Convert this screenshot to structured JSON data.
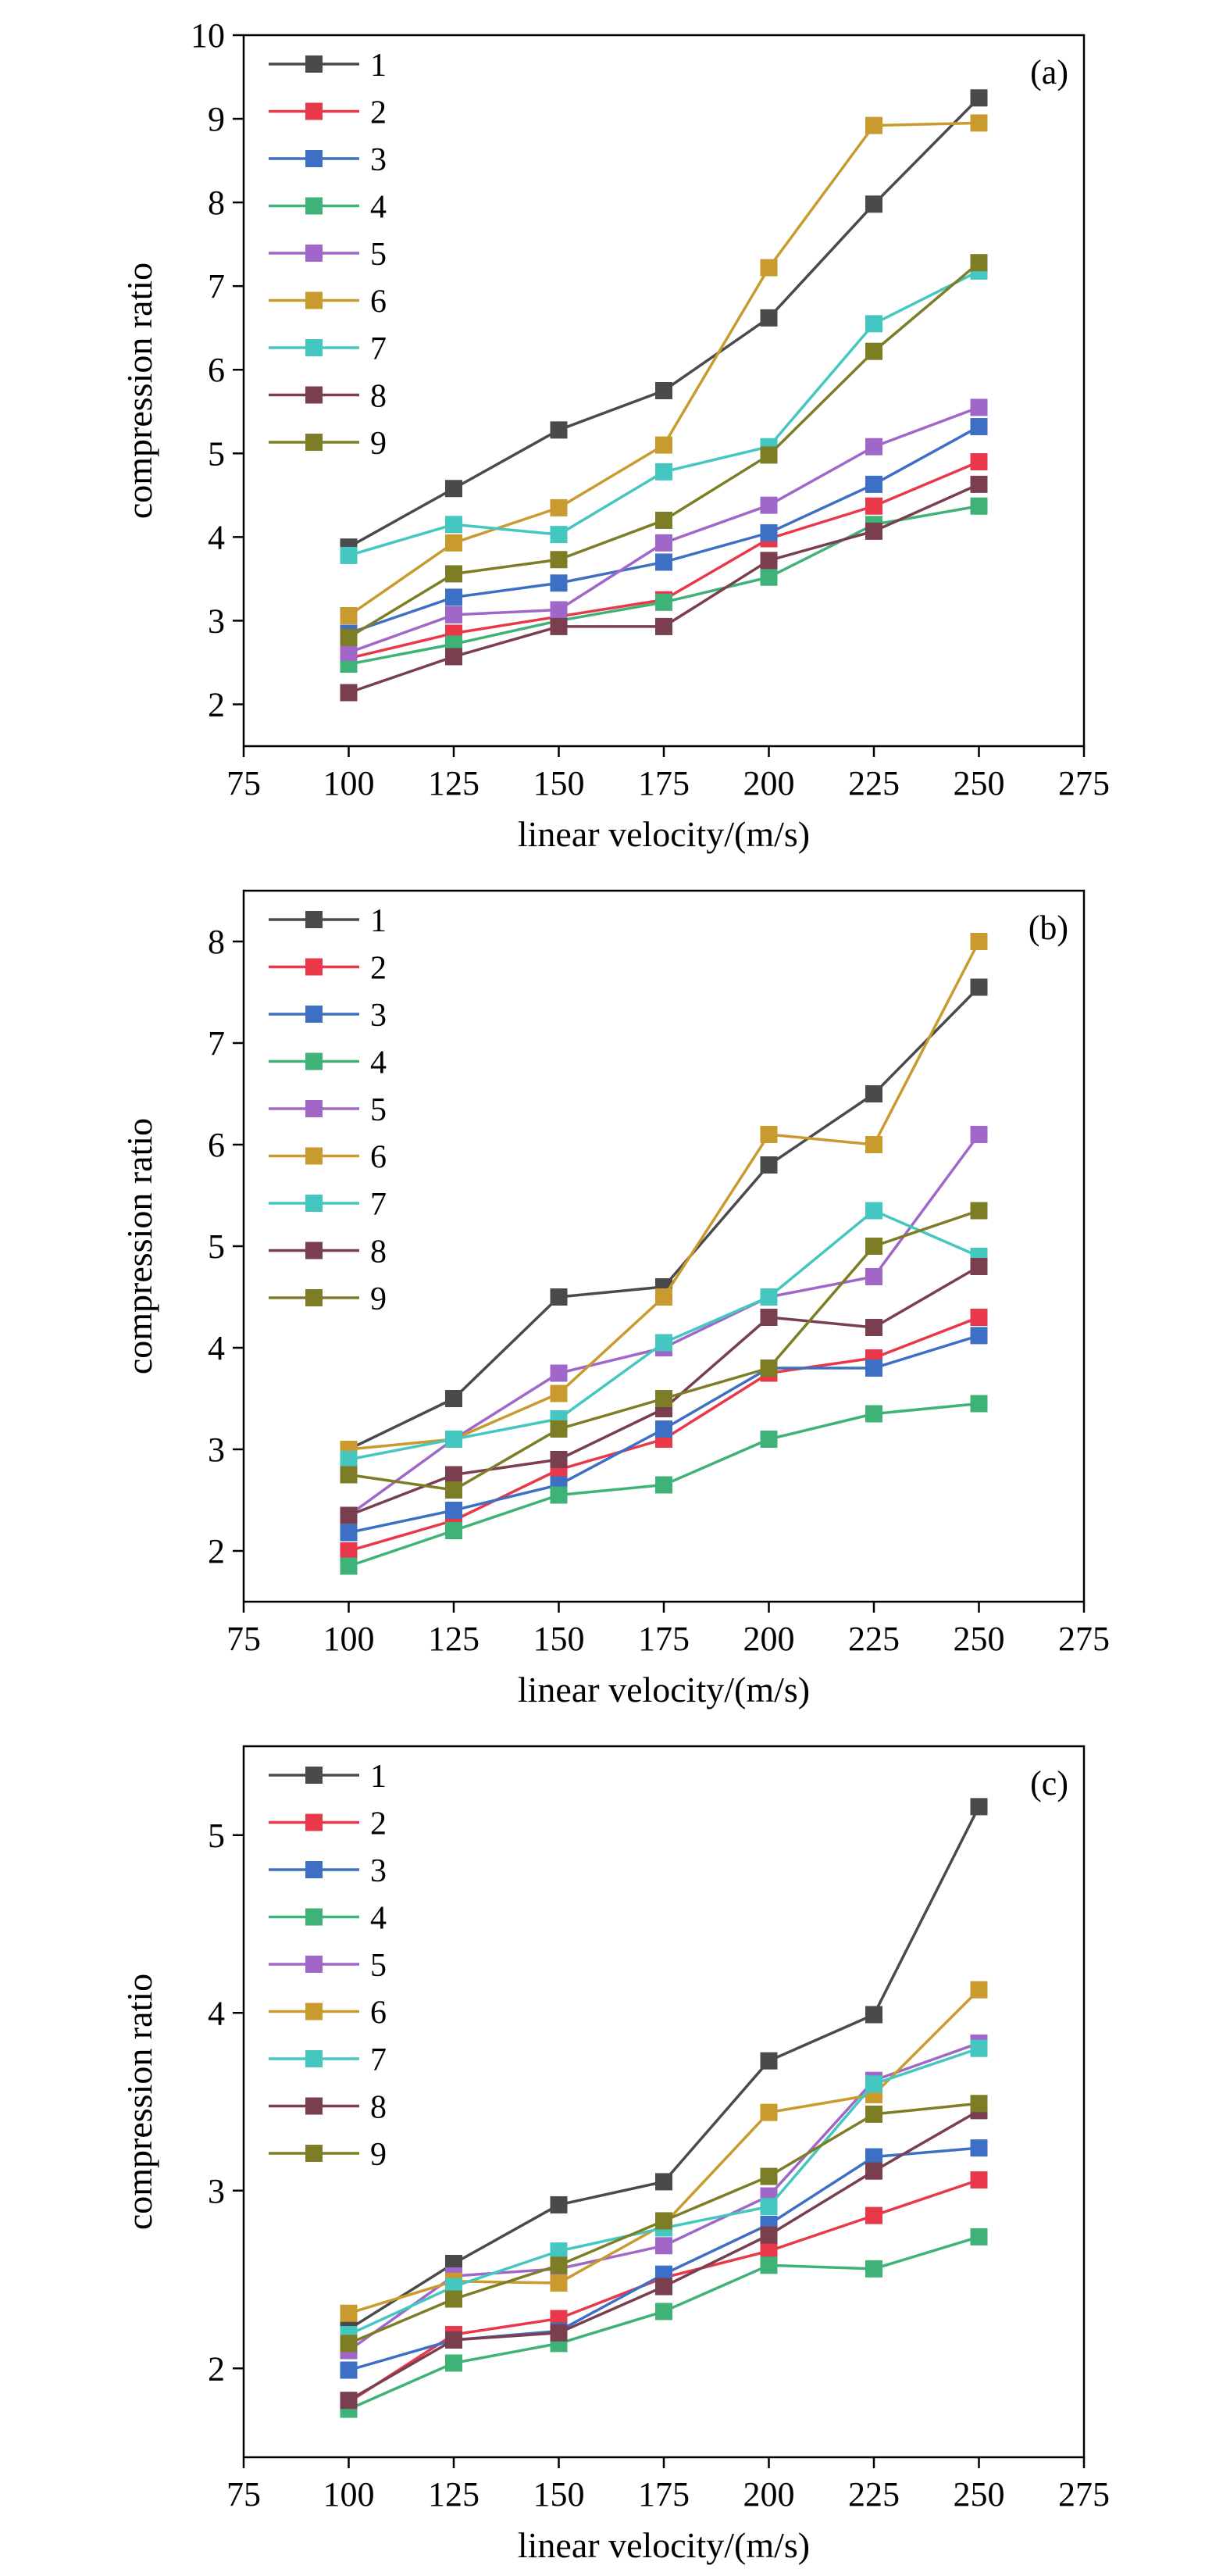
{
  "chart_data": [
    {
      "type": "line",
      "panel_label": "(a)",
      "xlabel": "linear velocity/(m/s)",
      "ylabel": "compression ratio",
      "xlim": [
        75,
        275
      ],
      "ylim": [
        1.5,
        10
      ],
      "xticks": [
        75,
        100,
        125,
        150,
        175,
        200,
        225,
        250,
        275
      ],
      "yticks": [
        2,
        3,
        4,
        5,
        6,
        7,
        8,
        9,
        10
      ],
      "legend": "top-left",
      "x": [
        100,
        125,
        150,
        175,
        200,
        225,
        250
      ],
      "series": [
        {
          "name": "1",
          "color": "#4a4a4a",
          "values": [
            3.88,
            4.58,
            5.28,
            5.75,
            6.62,
            7.98,
            9.25
          ]
        },
        {
          "name": "2",
          "color": "#e8384a",
          "values": [
            2.55,
            2.85,
            3.05,
            3.25,
            3.98,
            4.37,
            4.9
          ]
        },
        {
          "name": "3",
          "color": "#3d6fc4",
          "values": [
            2.85,
            3.28,
            3.45,
            3.7,
            4.05,
            4.63,
            5.32
          ]
        },
        {
          "name": "4",
          "color": "#3fb277",
          "values": [
            2.48,
            2.72,
            3.0,
            3.22,
            3.52,
            4.15,
            4.37
          ]
        },
        {
          "name": "5",
          "color": "#a067c9",
          "values": [
            2.62,
            3.07,
            3.13,
            3.93,
            4.38,
            5.08,
            5.55
          ]
        },
        {
          "name": "6",
          "color": "#c99a2e",
          "values": [
            3.06,
            3.93,
            4.35,
            5.1,
            7.22,
            8.92,
            8.95
          ]
        },
        {
          "name": "7",
          "color": "#45c7c1",
          "values": [
            3.78,
            4.15,
            4.03,
            4.78,
            5.08,
            6.55,
            7.18
          ]
        },
        {
          "name": "8",
          "color": "#7a3f4e",
          "values": [
            2.14,
            2.57,
            2.93,
            2.93,
            3.72,
            4.07,
            4.63
          ]
        },
        {
          "name": "9",
          "color": "#7d7d26",
          "values": [
            2.8,
            3.56,
            3.73,
            4.2,
            4.98,
            6.22,
            7.28
          ]
        }
      ]
    },
    {
      "type": "line",
      "panel_label": "(b)",
      "xlabel": "linear velocity/(m/s)",
      "ylabel": "compression ratio",
      "xlim": [
        75,
        275
      ],
      "ylim": [
        1.5,
        8.5
      ],
      "xticks": [
        75,
        100,
        125,
        150,
        175,
        200,
        225,
        250,
        275
      ],
      "yticks": [
        2,
        3,
        4,
        5,
        6,
        7,
        8
      ],
      "legend": "top-left",
      "x": [
        100,
        125,
        150,
        175,
        200,
        225,
        250
      ],
      "series": [
        {
          "name": "1",
          "color": "#4a4a4a",
          "values": [
            3.0,
            3.5,
            4.5,
            4.6,
            5.8,
            6.5,
            7.55
          ]
        },
        {
          "name": "2",
          "color": "#e8384a",
          "values": [
            2.0,
            2.3,
            2.8,
            3.1,
            3.75,
            3.9,
            4.3
          ]
        },
        {
          "name": "3",
          "color": "#3d6fc4",
          "values": [
            2.18,
            2.4,
            2.65,
            3.2,
            3.8,
            3.8,
            4.12
          ]
        },
        {
          "name": "4",
          "color": "#3fb277",
          "values": [
            1.85,
            2.2,
            2.55,
            2.65,
            3.1,
            3.35,
            3.45
          ]
        },
        {
          "name": "5",
          "color": "#a067c9",
          "values": [
            2.35,
            3.1,
            3.75,
            4.0,
            4.5,
            4.7,
            6.1
          ]
        },
        {
          "name": "6",
          "color": "#c99a2e",
          "values": [
            3.0,
            3.1,
            3.55,
            4.5,
            6.1,
            6.0,
            8.0
          ]
        },
        {
          "name": "7",
          "color": "#45c7c1",
          "values": [
            2.9,
            3.1,
            3.3,
            4.05,
            4.5,
            5.35,
            4.9
          ]
        },
        {
          "name": "8",
          "color": "#7a3f4e",
          "values": [
            2.35,
            2.75,
            2.9,
            3.4,
            4.3,
            4.2,
            4.8
          ]
        },
        {
          "name": "9",
          "color": "#7d7d26",
          "values": [
            2.75,
            2.6,
            3.2,
            3.5,
            3.8,
            5.0,
            5.35
          ]
        }
      ]
    },
    {
      "type": "line",
      "panel_label": "(c)",
      "xlabel": "linear velocity/(m/s)",
      "ylabel": "compression ratio",
      "xlim": [
        75,
        275
      ],
      "ylim": [
        1.5,
        5.5
      ],
      "xticks": [
        75,
        100,
        125,
        150,
        175,
        200,
        225,
        250,
        275
      ],
      "yticks": [
        2,
        3,
        4,
        5
      ],
      "legend": "top-left",
      "x": [
        100,
        125,
        150,
        175,
        200,
        225,
        250
      ],
      "series": [
        {
          "name": "1",
          "color": "#4a4a4a",
          "values": [
            2.22,
            2.59,
            2.92,
            3.05,
            3.73,
            3.99,
            5.16
          ]
        },
        {
          "name": "2",
          "color": "#e8384a",
          "values": [
            1.81,
            2.19,
            2.28,
            2.51,
            2.66,
            2.86,
            3.06
          ]
        },
        {
          "name": "3",
          "color": "#3d6fc4",
          "values": [
            1.99,
            2.16,
            2.21,
            2.53,
            2.81,
            3.19,
            3.24
          ]
        },
        {
          "name": "4",
          "color": "#3fb277",
          "values": [
            1.77,
            2.03,
            2.14,
            2.32,
            2.58,
            2.56,
            2.74
          ]
        },
        {
          "name": "5",
          "color": "#a067c9",
          "values": [
            2.1,
            2.52,
            2.56,
            2.69,
            2.97,
            3.62,
            3.83
          ]
        },
        {
          "name": "6",
          "color": "#c99a2e",
          "values": [
            2.31,
            2.49,
            2.48,
            2.81,
            3.44,
            3.54,
            4.13
          ]
        },
        {
          "name": "7",
          "color": "#45c7c1",
          "values": [
            2.19,
            2.46,
            2.66,
            2.79,
            2.91,
            3.6,
            3.8
          ]
        },
        {
          "name": "8",
          "color": "#7a3f4e",
          "values": [
            1.82,
            2.16,
            2.2,
            2.46,
            2.75,
            3.11,
            3.45
          ]
        },
        {
          "name": "9",
          "color": "#7d7d26",
          "values": [
            2.14,
            2.39,
            2.58,
            2.83,
            3.08,
            3.43,
            3.49
          ]
        }
      ]
    }
  ]
}
